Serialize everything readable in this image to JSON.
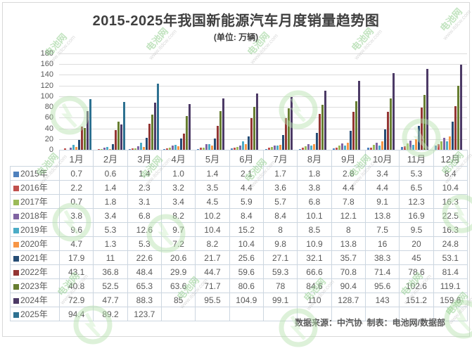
{
  "footer": {
    "text": "数据来源：中汽协  制表：电池网/数据部"
  },
  "watermark": {
    "brand": "电池网",
    "url": "www.itdcw.com"
  },
  "chart_data": {
    "type": "bar",
    "title": "2015-2025年我国新能源汽车月度销量趋势图",
    "subtitle": "(单位: 万辆)",
    "xlabel": "",
    "ylabel": "",
    "ylim": [
      0,
      180
    ],
    "yticks": [
      "180",
      "160",
      "140",
      "120",
      "100",
      "80",
      "60",
      "40",
      "20",
      "0"
    ],
    "grid": true,
    "legend_position": "data-table-left-column",
    "categories": [
      "1月",
      "2月",
      "3月",
      "4月",
      "5月",
      "6月",
      "7月",
      "8月",
      "9月",
      "10月",
      "11月",
      "12月"
    ],
    "series": [
      {
        "name": "2015年",
        "color": "#4F81BD",
        "values": [
          0.7,
          0.6,
          1.4,
          1.0,
          1.4,
          2.1,
          1.7,
          1.8,
          2.8,
          3.4,
          5.3,
          8.4
        ],
        "cells": [
          "0.7",
          "0.6",
          "1.4",
          "1.0",
          "1.4",
          "2.1",
          "1.7",
          "1.8",
          "2.8",
          "3.4",
          "5.3",
          "8.4"
        ]
      },
      {
        "name": "2016年",
        "color": "#C0504D",
        "values": [
          2.2,
          1.4,
          2.3,
          3.2,
          3.5,
          4.4,
          3.6,
          3.8,
          4.4,
          4.4,
          6.5,
          10.4
        ],
        "cells": [
          "2.2",
          "1.4",
          "2.3",
          "3.2",
          "3.5",
          "4.4",
          "3.6",
          "3.8",
          "4.4",
          "4.4",
          "6.5",
          "10.4"
        ]
      },
      {
        "name": "2017年",
        "color": "#9BBB59",
        "values": [
          0.7,
          1.8,
          3.1,
          3.4,
          4.5,
          5.9,
          5.7,
          6.8,
          7.8,
          9.1,
          12.3,
          16.3
        ],
        "cells": [
          "0.7",
          "1.8",
          "3.1",
          "3.4",
          "4.5",
          "5.9",
          "5.7",
          "6.8",
          "7.8",
          "9.1",
          "12.3",
          "16.3"
        ]
      },
      {
        "name": "2018年",
        "color": "#8064A2",
        "values": [
          3.8,
          3.4,
          6.8,
          8.2,
          10.2,
          8.4,
          8.4,
          10.1,
          12.1,
          13.8,
          16.9,
          22.5
        ],
        "cells": [
          "3.8",
          "3.4",
          "6.8",
          "8.2",
          "10.2",
          "8.4",
          "8.4",
          "10.1",
          "12.1",
          "13.8",
          "16.9",
          "22.5"
        ]
      },
      {
        "name": "2019年",
        "color": "#4BACC6",
        "values": [
          9.6,
          5.3,
          12.6,
          9.7,
          10.4,
          15.2,
          8,
          8.5,
          8,
          7.5,
          9.5,
          16.3
        ],
        "cells": [
          "9.6",
          "5.3",
          "12.6",
          "9.7",
          "10.4",
          "15.2",
          "8",
          "8.5",
          "8",
          "7.5",
          "9.5",
          "16.3"
        ]
      },
      {
        "name": "2020年",
        "color": "#F79646",
        "values": [
          4.7,
          1.3,
          5.3,
          7.2,
          8.2,
          10.4,
          9.8,
          10.9,
          13.8,
          16,
          20,
          24.8
        ],
        "cells": [
          "4.7",
          "1.3",
          "5.3",
          "7.2",
          "8.2",
          "10.4",
          "9.8",
          "10.9",
          "13.8",
          "16",
          "20",
          "24.8"
        ]
      },
      {
        "name": "2021年",
        "color": "#264D75",
        "values": [
          17.9,
          11,
          22.6,
          20.6,
          21.7,
          25.6,
          27.1,
          32.1,
          35.7,
          38.3,
          45,
          53.1
        ],
        "cells": [
          "17.9",
          "11",
          "22.6",
          "20.6",
          "21.7",
          "25.6",
          "27.1",
          "32.1",
          "35.7",
          "38.3",
          "45",
          "53.1"
        ]
      },
      {
        "name": "2022年",
        "color": "#943634",
        "values": [
          43.1,
          36.8,
          48.4,
          29.9,
          44.7,
          59.6,
          59.3,
          66.6,
          70.8,
          71.4,
          78.6,
          81.4
        ],
        "cells": [
          "43.1",
          "36.8",
          "48.4",
          "29.9",
          "44.7",
          "59.6",
          "59.3",
          "66.6",
          "70.8",
          "71.4",
          "78.6",
          "81.4"
        ]
      },
      {
        "name": "2023年",
        "color": "#677E31",
        "values": [
          40.8,
          52.5,
          65.3,
          63.6,
          71.7,
          80.6,
          78,
          84.6,
          90.4,
          95.6,
          102.6,
          119.1
        ],
        "cells": [
          "40.8",
          "52.5",
          "65.3",
          "63.6",
          "71.7",
          "80.6",
          "78",
          "84.6",
          "90.4",
          "95.6",
          "102.6",
          "119.1"
        ]
      },
      {
        "name": "2024年",
        "color": "#4C3A66",
        "values": [
          72.9,
          47.7,
          88.3,
          85,
          95.5,
          104.9,
          99.1,
          110,
          128.7,
          143,
          151.2,
          159.6
        ],
        "cells": [
          "72.9",
          "47.7",
          "88.3",
          "85",
          "95.5",
          "104.9",
          "99.1",
          "110",
          "128.7",
          "143",
          "151.2",
          "159.6"
        ]
      },
      {
        "name": "2025年",
        "color": "#2E7191",
        "values": [
          94.4,
          89.2,
          123.7,
          null,
          null,
          null,
          null,
          null,
          null,
          null,
          null,
          null
        ],
        "cells": [
          "94.4",
          "89.2",
          "123.7",
          "",
          "",
          "",
          "",
          "",
          "",
          "",
          "",
          ""
        ]
      }
    ]
  }
}
